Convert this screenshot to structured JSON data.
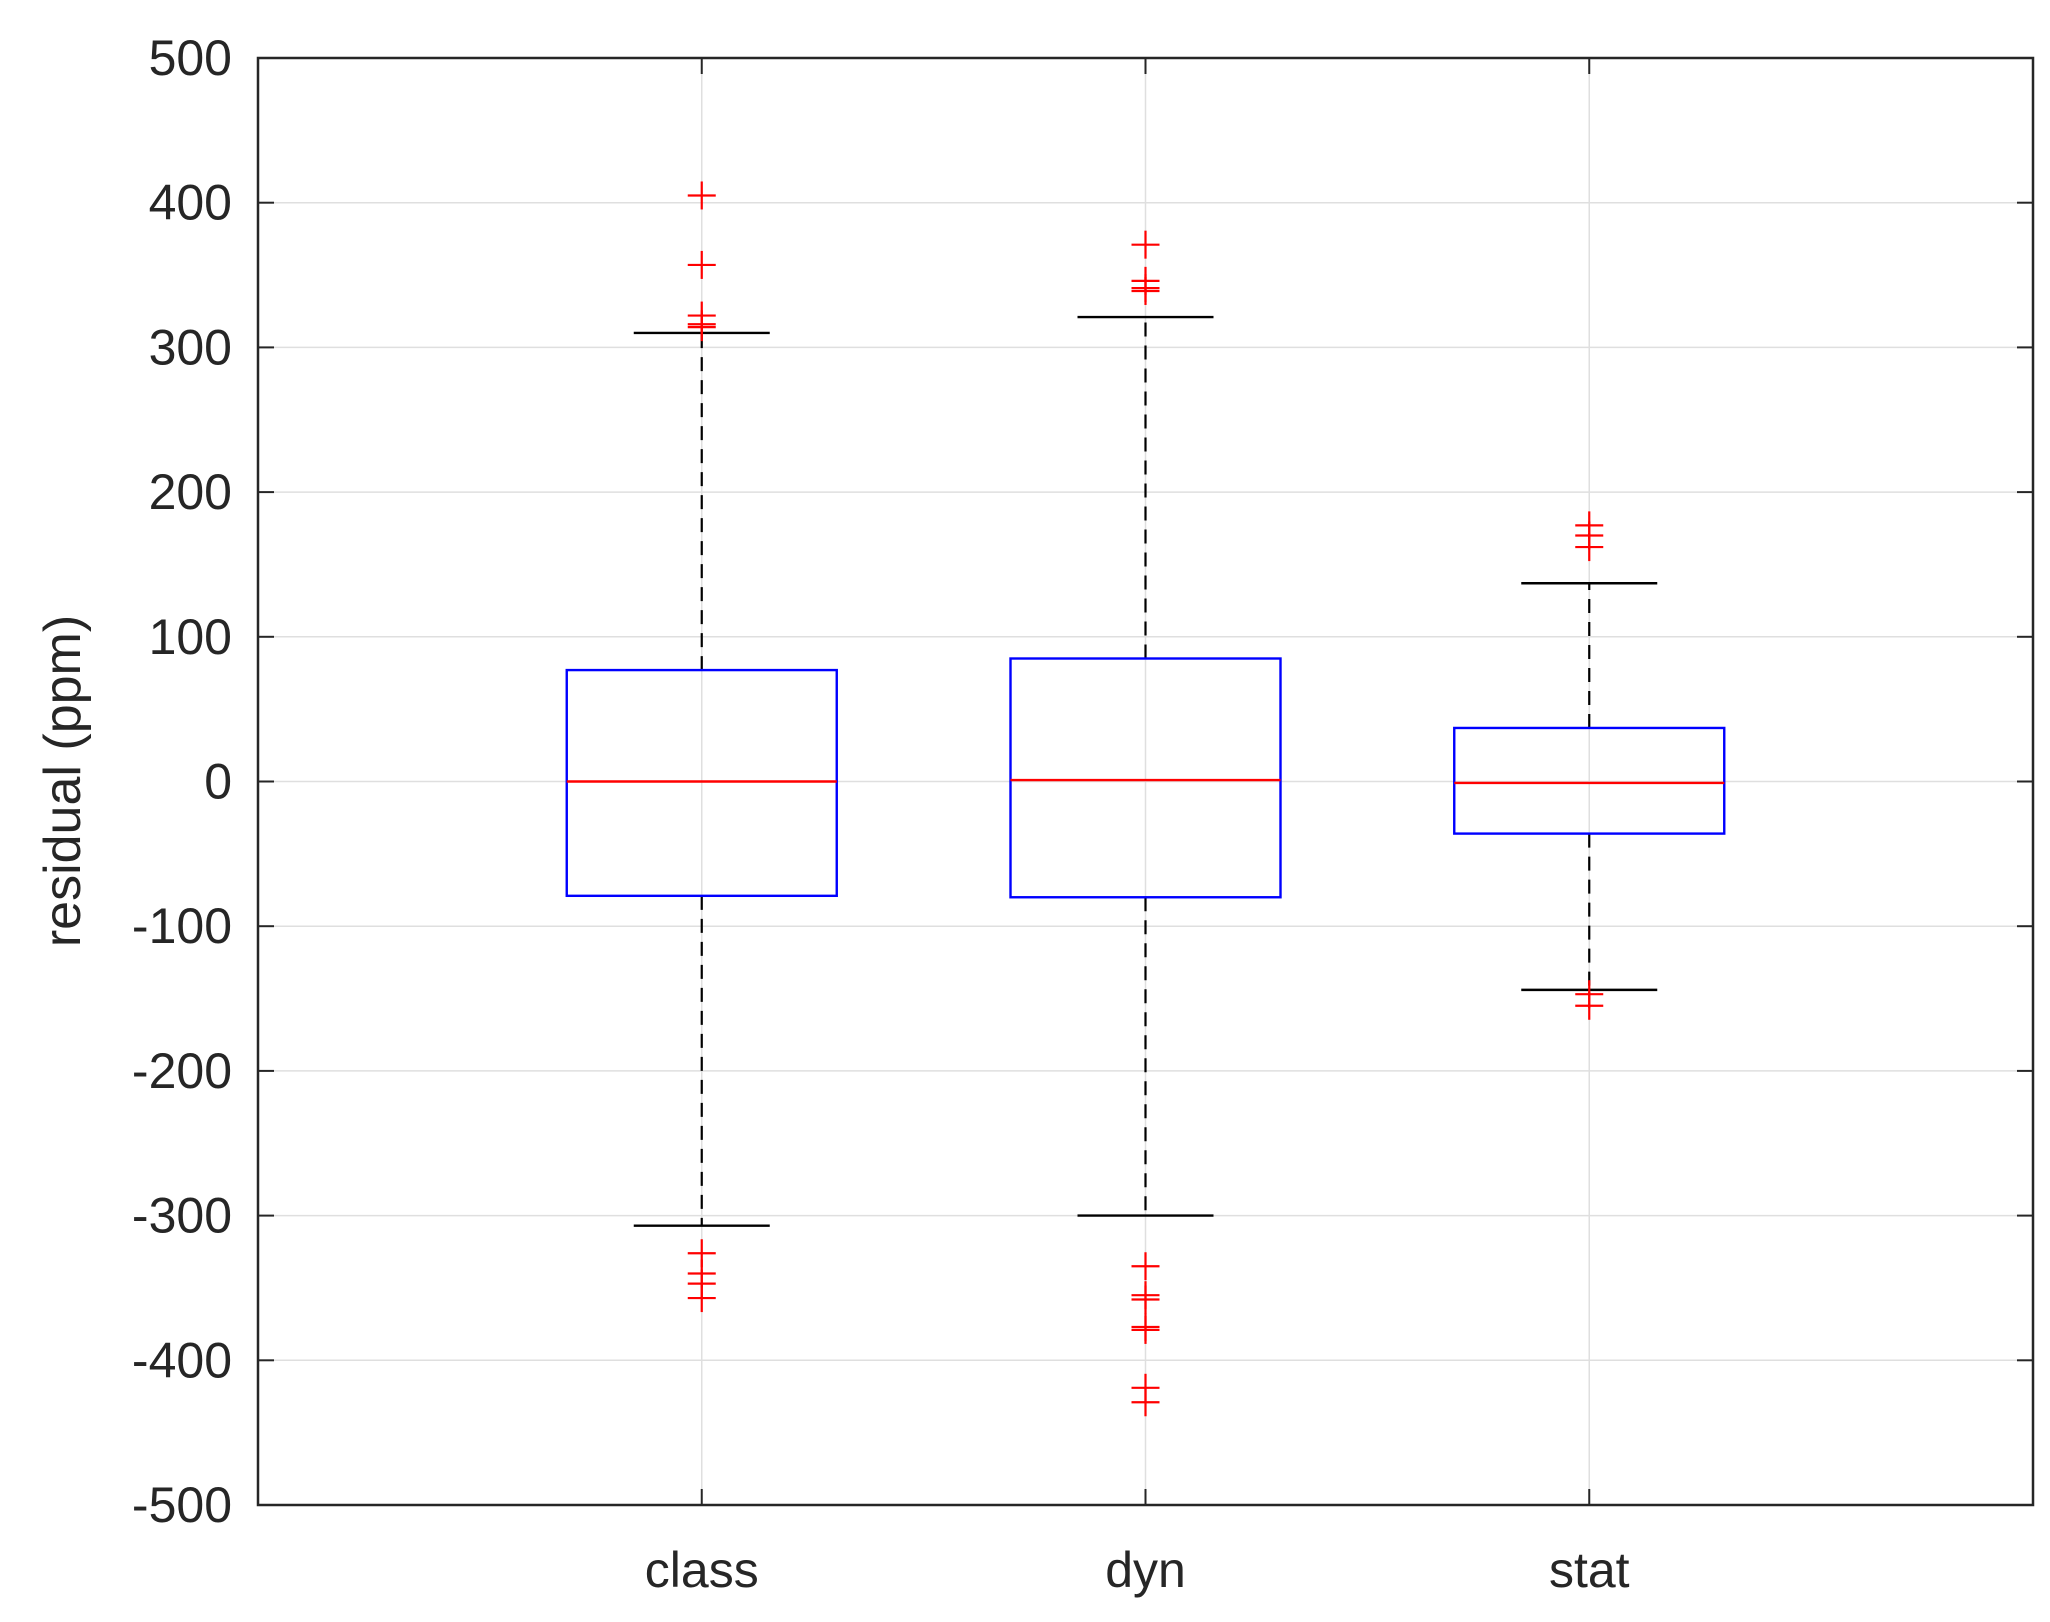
{
  "chart_data": {
    "type": "boxplot",
    "title": "",
    "xlabel": "",
    "ylabel": "residual (ppm)",
    "ylim": [
      -500,
      500
    ],
    "yticks": [
      500,
      400,
      300,
      200,
      100,
      0,
      -100,
      -200,
      -300,
      -400,
      -500
    ],
    "ytick_labels": [
      "500",
      "400",
      "300",
      "200",
      "100",
      "0",
      "-100",
      "-200",
      "-300",
      "-400",
      "-500"
    ],
    "grid": true,
    "categories": [
      "class",
      "dyn",
      "stat"
    ],
    "boxes": [
      {
        "category": "class",
        "median": 0,
        "q1": -79,
        "q3": 77,
        "whisker_low": -307,
        "whisker_high": 310,
        "outliers": [
          405,
          357,
          322,
          316,
          314,
          -326,
          -340,
          -347,
          -357
        ]
      },
      {
        "category": "dyn",
        "median": 1,
        "q1": -80,
        "q3": 85,
        "whisker_low": -300,
        "whisker_high": 321,
        "outliers": [
          371,
          346,
          341,
          339,
          -335,
          -355,
          -358,
          -377,
          -379,
          -419,
          -429
        ]
      },
      {
        "category": "stat",
        "median": -1,
        "q1": -36,
        "q3": 37,
        "whisker_low": -144,
        "whisker_high": 137,
        "outliers": [
          177,
          170,
          162,
          -147,
          -155
        ]
      }
    ],
    "colors": {
      "box": "#0000ff",
      "median": "#ff0000",
      "whisker": "#000000",
      "outlier": "#ff0000",
      "grid": "#dfdfdf",
      "axis": "#262626"
    }
  }
}
